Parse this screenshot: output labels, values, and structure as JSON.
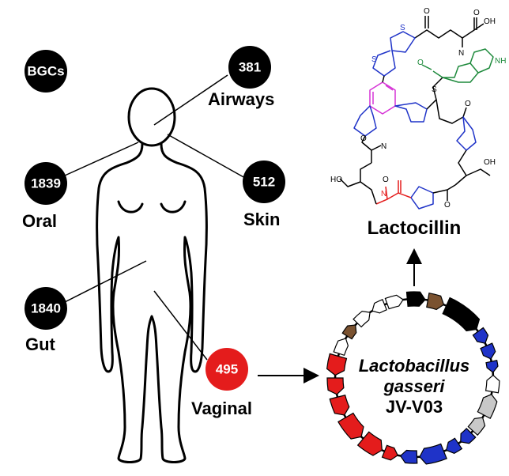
{
  "legend": {
    "label": "BGCs"
  },
  "sites": [
    {
      "id": "airways",
      "name": "Airways",
      "count": "381",
      "color": "#000000"
    },
    {
      "id": "oral",
      "name": "Oral",
      "count": "1839",
      "color": "#000000"
    },
    {
      "id": "skin",
      "name": "Skin",
      "count": "512",
      "color": "#000000"
    },
    {
      "id": "gut",
      "name": "Gut",
      "count": "1840",
      "color": "#000000"
    },
    {
      "id": "vaginal",
      "name": "Vaginal",
      "count": "495",
      "color": "#e41c1c"
    }
  ],
  "organism": {
    "genus": "Lactobacillus",
    "species": "gasseri",
    "strain": "JV-V03"
  },
  "product": {
    "name": "Lactocillin"
  },
  "colors": {
    "highlight": "#e41c1c",
    "pyridine": "#d633d6",
    "thiazole": "#1f33c8",
    "indole": "#1e8a3c",
    "brown_gene": "#7a5230"
  },
  "structure_atoms": {
    "carbonyl_o": "O",
    "nh": "N",
    "h": "H",
    "oh": "OH",
    "ho": "HO",
    "s": "S",
    "n": "N",
    "nh_indole": "NH",
    "cooh": "OH"
  }
}
